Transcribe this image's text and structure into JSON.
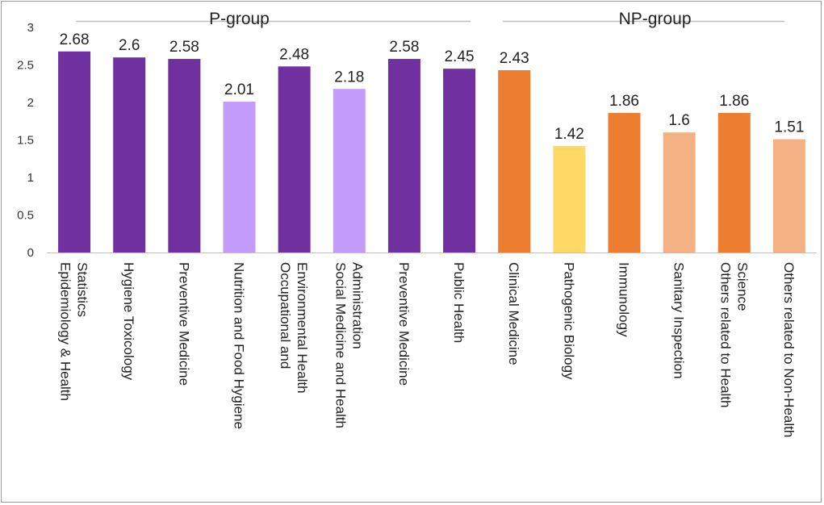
{
  "chart_data": {
    "type": "bar",
    "title": "",
    "xlabel": "",
    "ylabel": "",
    "ylim": [
      0,
      3
    ],
    "yticks": [
      "0",
      "0.5",
      "1",
      "1.5",
      "2",
      "2.5",
      "3"
    ],
    "grid": false,
    "groups": [
      {
        "name": "P-group",
        "start": 0,
        "end": 7
      },
      {
        "name": "NP-group",
        "start": 8,
        "end": 13
      }
    ],
    "bars": [
      {
        "category": [
          "Epidemiology & Health",
          "Statistics"
        ],
        "value": 2.68,
        "label": "2.68",
        "color": "#7030a0"
      },
      {
        "category": [
          "Hygiene Toxicology"
        ],
        "value": 2.6,
        "label": "2.6",
        "color": "#7030a0"
      },
      {
        "category": [
          "Preventive Medicine"
        ],
        "value": 2.58,
        "label": "2.58",
        "color": "#7030a0"
      },
      {
        "category": [
          "Nutrition and Food Hygiene"
        ],
        "value": 2.01,
        "label": "2.01",
        "color": "#c39bfa"
      },
      {
        "category": [
          "Occupational and",
          "Environmental Health"
        ],
        "value": 2.48,
        "label": "2.48",
        "color": "#7030a0"
      },
      {
        "category": [
          "Social Medicine and Health",
          "Administration"
        ],
        "value": 2.18,
        "label": "2.18",
        "color": "#c39bfa"
      },
      {
        "category": [
          "Preventive Medicine"
        ],
        "value": 2.58,
        "label": "2.58",
        "color": "#7030a0"
      },
      {
        "category": [
          "Public Health"
        ],
        "value": 2.45,
        "label": "2.45",
        "color": "#7030a0"
      },
      {
        "category": [
          "Clinical Medicine"
        ],
        "value": 2.43,
        "label": "2.43",
        "color": "#ed7d31"
      },
      {
        "category": [
          "Pathogenic Biology"
        ],
        "value": 1.42,
        "label": "1.42",
        "color": "#ffd966"
      },
      {
        "category": [
          "Immunology"
        ],
        "value": 1.86,
        "label": "1.86",
        "color": "#ed7d31"
      },
      {
        "category": [
          "Sanitary Inspection"
        ],
        "value": 1.6,
        "label": "1.6",
        "color": "#f4b183"
      },
      {
        "category": [
          "Others related to Health",
          "Science"
        ],
        "value": 1.86,
        "label": "1.86",
        "color": "#ed7d31"
      },
      {
        "category": [
          "Others related to Non-Health"
        ],
        "value": 1.51,
        "label": "1.51",
        "color": "#f4b183"
      }
    ]
  }
}
